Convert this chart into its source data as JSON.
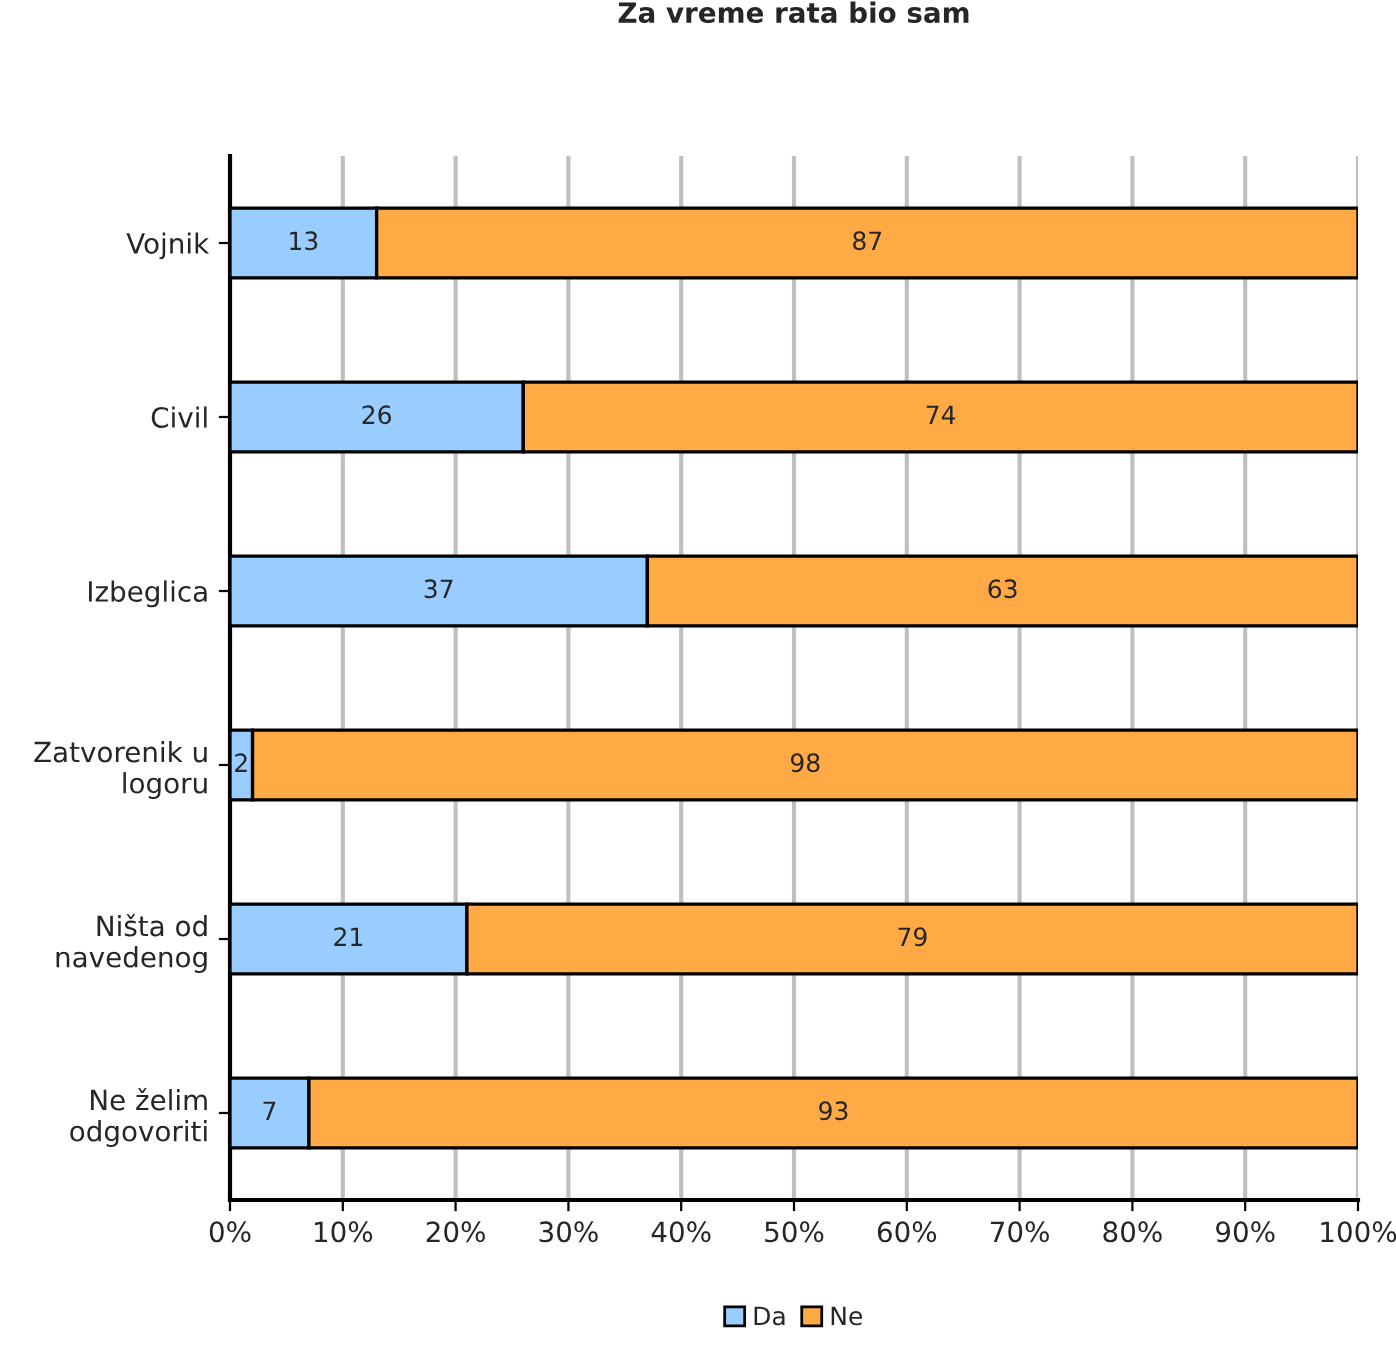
{
  "chart_data": {
    "type": "bar",
    "title": "Za vreme rata bio sam",
    "orientation": "horizontal",
    "stacked": true,
    "data_labels": true,
    "categories": [
      "Vojnik",
      "Civil",
      "Izbeglica",
      "Zatvorenik u\nlogoru",
      "Ništa od\nnavedenog",
      "Ne želim\nodgovoriti"
    ],
    "series": [
      {
        "name": "Da",
        "color": "#99ccff",
        "values": [
          13,
          26,
          37,
          2,
          21,
          7
        ]
      },
      {
        "name": "Ne",
        "color": "#ffaa44",
        "values": [
          87,
          74,
          63,
          98,
          79,
          93
        ]
      }
    ],
    "xlim": [
      0,
      100
    ],
    "xticks": [
      {
        "value": 0,
        "label": "0%"
      },
      {
        "value": 10,
        "label": "10%"
      },
      {
        "value": 20,
        "label": "20%"
      },
      {
        "value": 30,
        "label": "30%"
      },
      {
        "value": 40,
        "label": "40%"
      },
      {
        "value": 50,
        "label": "50%"
      },
      {
        "value": 60,
        "label": "60%"
      },
      {
        "value": 70,
        "label": "70%"
      },
      {
        "value": 80,
        "label": "80%"
      },
      {
        "value": 90,
        "label": "90%"
      },
      {
        "value": 100,
        "label": "100%"
      }
    ],
    "grid": "x",
    "legend": "bottom"
  }
}
